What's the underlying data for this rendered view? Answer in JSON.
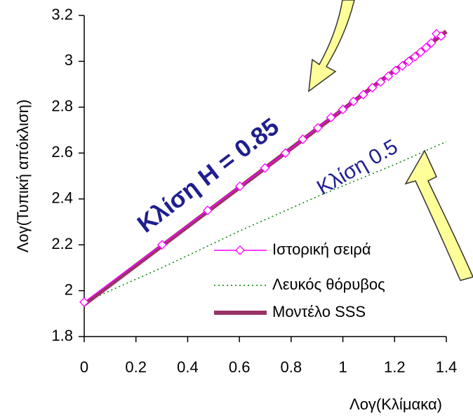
{
  "chart_data": {
    "type": "line",
    "xlabel": "Λογ(Κλίμακα)",
    "ylabel": "Λογ(Τυπική απόκλιση)",
    "annotations": [
      "Κλίση H = 0.85",
      "Κλίση 0.5"
    ],
    "xlim": [
      0,
      1.4
    ],
    "xticks": [
      0,
      0.2,
      0.4,
      0.6,
      0.8,
      1,
      1.2,
      1.4
    ],
    "ylim": [
      1.8,
      3.2
    ],
    "yticks": [
      1.8,
      2,
      2.2,
      2.4,
      2.6,
      2.8,
      3,
      3.2
    ],
    "grid": false,
    "series": [
      {
        "name": "Ιστορική σειρά",
        "color": "#ff00ff",
        "marker": "diamond",
        "x": [
          0,
          0.301,
          0.477,
          0.602,
          0.699,
          0.778,
          0.845,
          0.903,
          0.954,
          1,
          1.041,
          1.079,
          1.114,
          1.146,
          1.176,
          1.204,
          1.23,
          1.255,
          1.279,
          1.301,
          1.322,
          1.342,
          1.362,
          1.38
        ],
        "values": [
          1.95,
          2.2,
          2.35,
          2.455,
          2.535,
          2.6,
          2.66,
          2.71,
          2.755,
          2.79,
          2.825,
          2.855,
          2.885,
          2.91,
          2.935,
          2.96,
          2.98,
          3.0,
          3.02,
          3.04,
          3.06,
          3.08,
          3.12,
          3.11
        ]
      },
      {
        "name": "Λευκός θόρυβος",
        "color": "#008000",
        "style": "dotted",
        "x": [
          0,
          0.3,
          0.6,
          0.9,
          1.2,
          1.4
        ],
        "values": [
          1.95,
          2.1,
          2.26,
          2.41,
          2.55,
          2.65
        ]
      },
      {
        "name": "Μοντέλο SSS",
        "color": "#993366",
        "width": 6,
        "x": [
          0,
          1.4
        ],
        "values": [
          1.94,
          3.13
        ]
      }
    ]
  }
}
